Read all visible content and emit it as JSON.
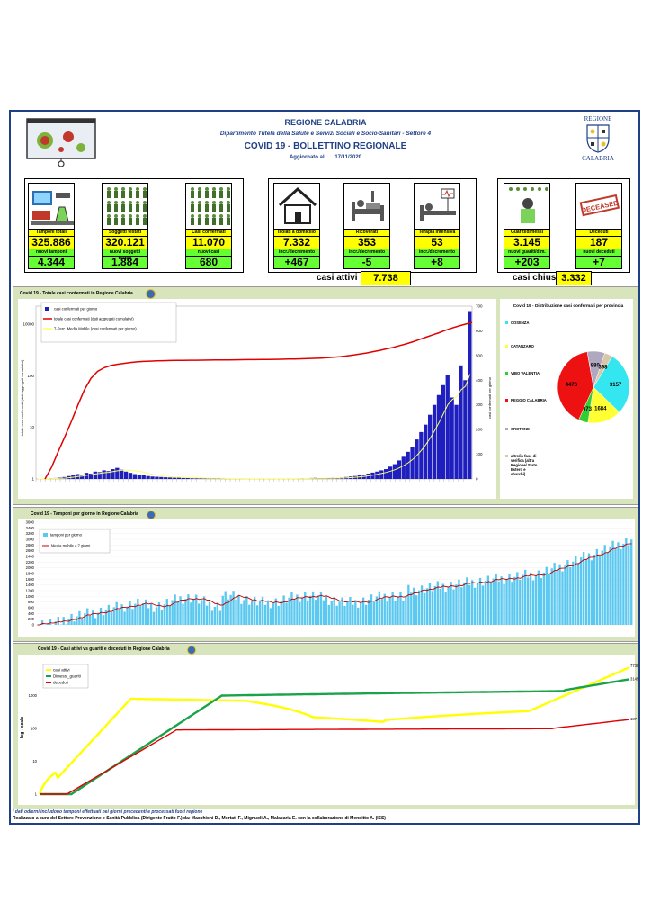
{
  "header": {
    "region": "REGIONE CALABRIA",
    "department": "Dipartimento Tutela della Salute e Servizi Sociali e Socio-Sanitari - Settore 4",
    "title": "COVID 19 - BOLLETTINO REGIONALE",
    "updated_label": "Aggiornato al",
    "updated_date": "17/11/2020",
    "logo_top": "REGIONE",
    "logo_bottom": "CALABRIA"
  },
  "stats": [
    {
      "label": "Tamponi totali",
      "value": "325.886",
      "sub_label": "nuovi tamponi",
      "sub_value": "4.344"
    },
    {
      "label": "Soggetti testati",
      "value": "320.121",
      "sub_label": "nuovi soggetti testati",
      "sub_value": "1.884"
    },
    {
      "label": "Casi confermati",
      "value": "11.070",
      "sub_label": "nuovi casi",
      "sub_value": "680"
    },
    {
      "label": "Isolati a domicilio",
      "value": "7.332",
      "sub_label": "incr./decremento",
      "sub_value": "+467"
    },
    {
      "label": "Ricoverati",
      "value": "353",
      "sub_label": "incr./decremento",
      "sub_value": "-5"
    },
    {
      "label": "Terapia intensiva",
      "value": "53",
      "sub_label": "incr./decremento",
      "sub_value": "+8"
    },
    {
      "label": "Guariti/dimessi",
      "value": "3.145",
      "sub_label": "nuovi guariti/dim.",
      "sub_value": "+203"
    },
    {
      "label": "Deceduti",
      "value": "187",
      "sub_label": "nuovi deceduti",
      "sub_value": "+7"
    }
  ],
  "deceased_stamp": "DECEASED",
  "summary": {
    "active_label": "casi attivi",
    "active_value": "7.738",
    "closed_label": "casi chiusi",
    "closed_value": "3.332"
  },
  "colors": {
    "frame": "#1f3f86",
    "panel": "#d8e4bc",
    "yellow": "#ffff00",
    "green": "#66ff33",
    "blue": "#1f1fbf",
    "red": "#e00000",
    "lightblue": "#5bc8f0",
    "darkgreen": "#1aa34a"
  },
  "chart_data": [
    {
      "type": "bar",
      "title": "Covid 19 - Totale casi confermati in Regione Calabria",
      "ylabel": "totale casi confermati (dati aggregati cumulativi)",
      "y2label": "casi confermati per giorno",
      "left_ticks": [
        "10000",
        "100",
        "10",
        "1"
      ],
      "right_ticks": [
        "700",
        "600",
        "500",
        "400",
        "300",
        "200",
        "100",
        "0"
      ],
      "ylim_right": [
        0,
        700
      ],
      "series": [
        {
          "name": "casi confermati per giorno",
          "values": [
            0,
            1,
            2,
            3,
            4,
            6,
            8,
            12,
            15,
            20,
            18,
            25,
            22,
            30,
            28,
            35,
            32,
            40,
            45,
            38,
            30,
            25,
            20,
            18,
            15,
            12,
            10,
            9,
            8,
            7,
            6,
            5,
            5,
            4,
            4,
            3,
            3,
            3,
            2,
            2,
            2,
            2,
            1,
            1,
            1,
            1,
            1,
            1,
            1,
            1,
            1,
            2,
            1,
            1,
            1,
            1,
            1,
            2,
            1,
            2,
            3,
            2,
            4,
            5,
            3,
            2,
            3,
            5,
            4,
            6,
            8,
            10,
            12,
            15,
            18,
            22,
            26,
            30,
            35,
            40,
            50,
            60,
            75,
            90,
            110,
            130,
            160,
            190,
            220,
            260,
            300,
            340,
            380,
            420,
            330,
            300,
            460,
            400,
            680
          ]
        },
        {
          "name": "totale casi confermati (dati aggregati cumulativi)",
          "values": [
            1,
            2,
            5,
            12,
            30,
            80,
            200,
            400,
            600,
            750,
            850,
            920,
            970,
            1020,
            1060,
            1090,
            1110,
            1130,
            1140,
            1150,
            1155,
            1160,
            1165,
            1170,
            1175,
            1180,
            1185,
            1190,
            1195,
            1200,
            1205,
            1210,
            1215,
            1220,
            1225,
            1230,
            1240,
            1250,
            1260,
            1275,
            1290,
            1310,
            1330,
            1360,
            1400,
            1450,
            1520,
            1600,
            1700,
            1800,
            1950,
            2100,
            2300,
            2500,
            2800,
            3100,
            3500,
            4000,
            4600,
            5300,
            6000,
            7000,
            8000,
            9000,
            10000,
            11070
          ]
        },
        {
          "name": "7-Perc. Media Mobile (casi confermati per giorno)"
        }
      ],
      "pie": {
        "title": "Covid 19 - Distribuzione casi confermati per provincia",
        "labels": [
          "COSENZA",
          "CATANZARO",
          "VIBO VALENTIA",
          "REGGIO CALABRIA",
          "CROTONE",
          "altro/in fase di verifica (altra Regione/ Stato Estero e sbarchi)"
        ],
        "values": [
          3157,
          1684,
          473,
          4476,
          880,
          398
        ],
        "colors": [
          "#33e6f0",
          "#ffff33",
          "#33cc33",
          "#ee1111",
          "#b0a8c0",
          "#d8c8a8"
        ]
      }
    },
    {
      "type": "bar",
      "title": "Covid 19 - Tamponi per giorno in Regione Calabria",
      "ylim": [
        0,
        3600
      ],
      "yticks": [
        "3600",
        "3400",
        "3200",
        "3000",
        "2800",
        "2600",
        "2400",
        "2200",
        "2000",
        "1800",
        "1600",
        "1400",
        "1200",
        "1000",
        "800",
        "600",
        "400",
        "200",
        "0"
      ],
      "series": [
        {
          "name": "tamponi per giorno"
        },
        {
          "name": "Media mobile a 7 giorni"
        }
      ]
    },
    {
      "type": "line",
      "title": "Covid 19 - Casi attivi vs guariti e deceduti in Regione Calabria",
      "ylabel": "log - scale",
      "yticks": [
        "1000",
        "100",
        "10",
        "1"
      ],
      "series": [
        {
          "name": "casi attivi",
          "end_label": "7738"
        },
        {
          "name": "Dimessi_guariti",
          "end_label": "3145"
        },
        {
          "name": "deceduti",
          "end_label": "187"
        }
      ]
    }
  ],
  "footer": {
    "note": "I dati odierni includono tamponi effettuati nei giorni precedenti e processati fuori regione",
    "credits": "Realizzato a cura del Settore Prevenzione e Sanità Pubblica (Dirigente Fratto F.) da: Macchioni D., Mortati F., Mignuoli A., Malacaria E. con la collaborazione di Menditto A. (ISS)"
  }
}
